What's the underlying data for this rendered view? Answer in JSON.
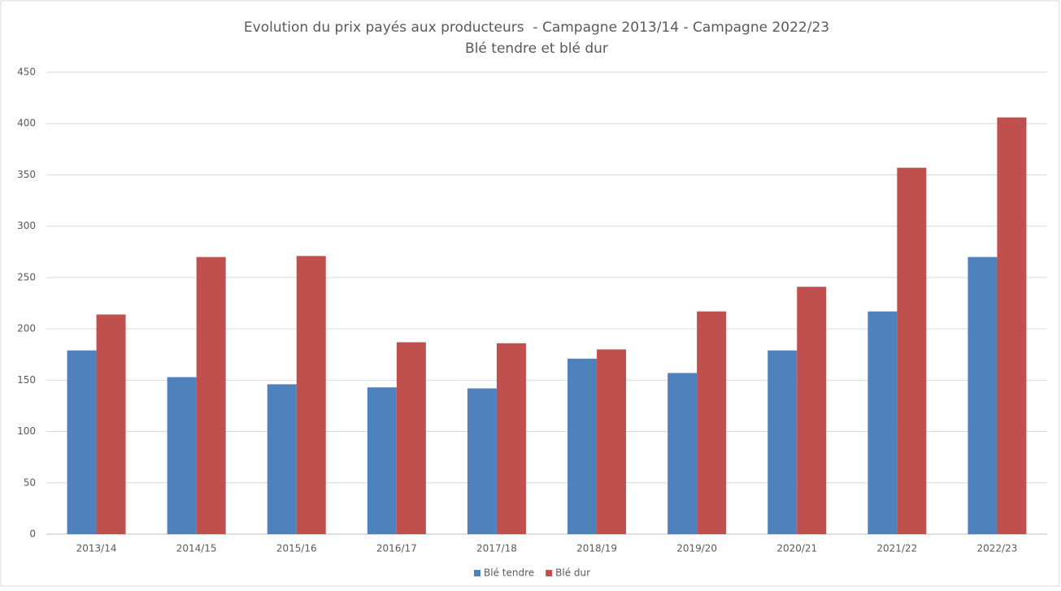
{
  "chart_data": {
    "type": "bar",
    "title": "Evolution du prix payés aux producteurs  - Campagne 2013/14 - Campagne 2022/23",
    "subtitle": "Blé tendre et blé dur",
    "categories": [
      "2013/14",
      "2014/15",
      "2015/16",
      "2016/17",
      "2017/18",
      "2018/19",
      "2019/20",
      "2020/21",
      "2021/22",
      "2022/23"
    ],
    "series": [
      {
        "name": "Blé tendre",
        "color": "#4f81bd",
        "values": [
          179,
          153,
          146,
          143,
          142,
          171,
          157,
          179,
          217,
          270
        ]
      },
      {
        "name": "Blé dur",
        "color": "#c0504d",
        "values": [
          214,
          270,
          271,
          187,
          186,
          180,
          217,
          241,
          357,
          406
        ]
      }
    ],
    "ylim": [
      0,
      450
    ],
    "yticks": [
      0,
      50,
      100,
      150,
      200,
      250,
      300,
      350,
      400,
      450
    ],
    "grid": true,
    "legend": "bottom"
  }
}
